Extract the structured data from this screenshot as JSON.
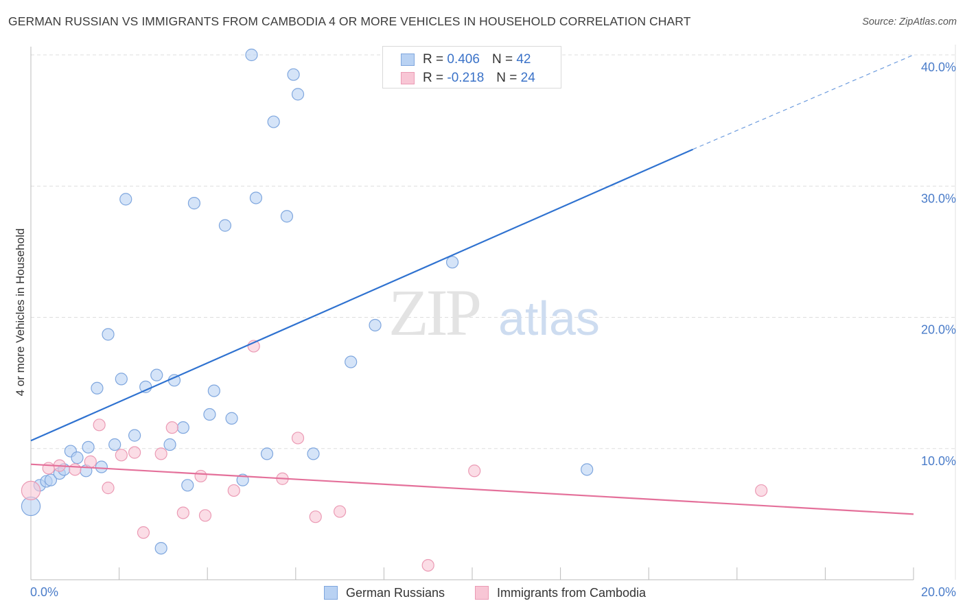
{
  "title": "GERMAN RUSSIAN VS IMMIGRANTS FROM CAMBODIA 4 OR MORE VEHICLES IN HOUSEHOLD CORRELATION CHART",
  "source": "Source: ZipAtlas.com",
  "watermark": {
    "zip": "ZIP",
    "atlas": "atlas"
  },
  "colors": {
    "blue_fill": "#b9d2f3",
    "blue_stroke": "#7ea6de",
    "blue_line": "#2f72d0",
    "pink_fill": "#f8c6d5",
    "pink_stroke": "#eb9ab4",
    "pink_line": "#e4709a",
    "grid": "#dddddd",
    "tick_text": "#4a7cc9"
  },
  "legend": {
    "rows": [
      {
        "r_label": "R = ",
        "r_value": "0.406",
        "n_label": "N = ",
        "n_value": "42"
      },
      {
        "r_label": "R = ",
        "r_value": "-0.218",
        "n_label": "N = ",
        "n_value": "24"
      }
    ]
  },
  "bottom_legend": {
    "series1": "German Russians",
    "series2": "Immigrants from Cambodia"
  },
  "chart_data": {
    "type": "scatter",
    "title": "GERMAN RUSSIAN VS IMMIGRANTS FROM CAMBODIA 4 OR MORE VEHICLES IN HOUSEHOLD CORRELATION CHART",
    "xlabel": "",
    "ylabel": "4 or more Vehicles in Household",
    "xlim": [
      0,
      20
    ],
    "ylim": [
      0,
      40
    ],
    "x_tick_labels": [
      "0.0%",
      "20.0%"
    ],
    "y_ticks": [
      10,
      20,
      30,
      40
    ],
    "y_tick_labels": [
      "10.0%",
      "20.0%",
      "30.0%",
      "40.0%"
    ],
    "grid": true,
    "legend_position": "top-center",
    "series": [
      {
        "name": "German Russians",
        "r": 0.406,
        "n": 42,
        "trend": {
          "x0": 0,
          "y0": 10.6,
          "x1": 15,
          "y1": 32.8,
          "dashed_to_x": 20,
          "dashed_to_y": 40
        },
        "points": [
          [
            0.0,
            5.6,
            1.6
          ],
          [
            0.2,
            7.2,
            1
          ],
          [
            0.35,
            7.5,
            1
          ],
          [
            0.45,
            7.6,
            1
          ],
          [
            0.65,
            8.1,
            1
          ],
          [
            0.75,
            8.4,
            1
          ],
          [
            0.9,
            9.8,
            1
          ],
          [
            1.05,
            9.3,
            1
          ],
          [
            1.25,
            8.3,
            1
          ],
          [
            1.3,
            10.1,
            1
          ],
          [
            1.5,
            14.6,
            1
          ],
          [
            1.6,
            8.6,
            1
          ],
          [
            1.75,
            18.7,
            1
          ],
          [
            1.9,
            10.3,
            1
          ],
          [
            2.05,
            15.3,
            1
          ],
          [
            2.15,
            29.0,
            1
          ],
          [
            2.35,
            11.0,
            1
          ],
          [
            2.6,
            14.7,
            1
          ],
          [
            2.85,
            15.6,
            1
          ],
          [
            2.95,
            2.4,
            1
          ],
          [
            3.15,
            10.3,
            1
          ],
          [
            3.25,
            15.2,
            1
          ],
          [
            3.45,
            11.6,
            1
          ],
          [
            3.55,
            7.2,
            1
          ],
          [
            3.7,
            28.7,
            1
          ],
          [
            4.05,
            12.6,
            1
          ],
          [
            4.15,
            14.4,
            1
          ],
          [
            4.4,
            27.0,
            1
          ],
          [
            4.55,
            12.3,
            1
          ],
          [
            4.8,
            7.6,
            1
          ],
          [
            5.0,
            40.0,
            1
          ],
          [
            5.1,
            29.1,
            1
          ],
          [
            5.35,
            9.6,
            1
          ],
          [
            5.5,
            34.9,
            1
          ],
          [
            5.8,
            27.7,
            1
          ],
          [
            5.95,
            38.5,
            1
          ],
          [
            6.05,
            37.0,
            1
          ],
          [
            6.4,
            9.6,
            1
          ],
          [
            7.25,
            16.6,
            1
          ],
          [
            7.8,
            19.4,
            1
          ],
          [
            9.55,
            24.2,
            1
          ],
          [
            12.6,
            8.4,
            1
          ]
        ]
      },
      {
        "name": "Immigrants from Cambodia",
        "r": -0.218,
        "n": 24,
        "trend": {
          "x0": 0,
          "y0": 8.8,
          "x1": 20,
          "y1": 5.0
        },
        "points": [
          [
            0.0,
            6.8,
            1.6
          ],
          [
            0.4,
            8.5,
            1
          ],
          [
            0.65,
            8.7,
            1
          ],
          [
            1.0,
            8.4,
            1
          ],
          [
            1.35,
            9.0,
            1
          ],
          [
            1.55,
            11.8,
            1
          ],
          [
            1.75,
            7.0,
            1
          ],
          [
            2.05,
            9.5,
            1
          ],
          [
            2.35,
            9.7,
            1
          ],
          [
            2.55,
            3.6,
            1
          ],
          [
            2.95,
            9.6,
            1
          ],
          [
            3.2,
            11.6,
            1
          ],
          [
            3.45,
            5.1,
            1
          ],
          [
            3.85,
            7.9,
            1
          ],
          [
            3.95,
            4.9,
            1
          ],
          [
            4.6,
            6.8,
            1
          ],
          [
            5.05,
            17.8,
            1
          ],
          [
            5.7,
            7.7,
            1
          ],
          [
            6.05,
            10.8,
            1
          ],
          [
            6.45,
            4.8,
            1
          ],
          [
            7.0,
            5.2,
            1
          ],
          [
            9.0,
            1.1,
            1
          ],
          [
            10.05,
            8.3,
            1
          ],
          [
            16.55,
            6.8,
            1
          ]
        ]
      }
    ]
  }
}
